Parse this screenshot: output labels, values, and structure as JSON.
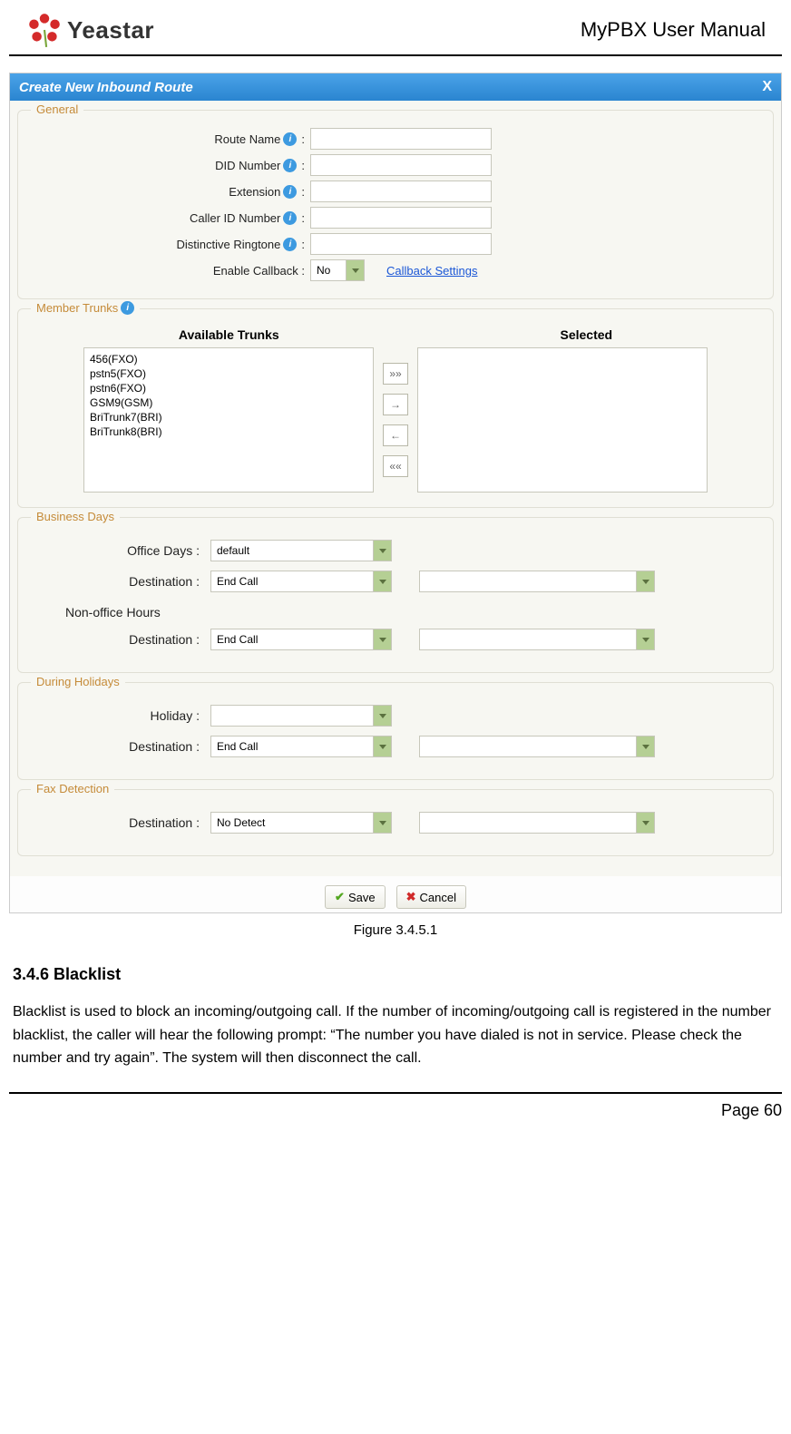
{
  "header": {
    "logo_text": "Yeastar",
    "doc_title": "MyPBX User Manual",
    "logo_color": "#d42a2a"
  },
  "dialog": {
    "title": "Create New Inbound Route",
    "close": "X"
  },
  "general": {
    "legend": "General",
    "route_name_label": "Route Name",
    "did_number_label": "DID Number",
    "extension_label": "Extension",
    "caller_id_label": "Caller ID Number",
    "ringtone_label": "Distinctive Ringtone",
    "enable_callback_label": "Enable Callback :",
    "enable_callback_value": "No",
    "callback_settings_link": "Callback Settings"
  },
  "trunks": {
    "legend": "Member Trunks",
    "available_header": "Available Trunks",
    "selected_header": "Selected",
    "available": [
      "456(FXO)",
      "pstn5(FXO)",
      "pstn6(FXO)",
      "GSM9(GSM)",
      "BriTrunk7(BRI)",
      "BriTrunk8(BRI)"
    ],
    "move_all_right": "»»",
    "move_right": "→",
    "move_left": "←",
    "move_all_left": "««"
  },
  "business_days": {
    "legend": "Business Days",
    "office_days_label": "Office Days :",
    "office_days_value": "default",
    "destination_label": "Destination :",
    "destination_value": "End Call",
    "nonoffice_header": "Non-office Hours",
    "nonoffice_destination_value": "End Call"
  },
  "holidays": {
    "legend": "During Holidays",
    "holiday_label": "Holiday :",
    "holiday_value": "",
    "destination_label": "Destination :",
    "destination_value": "End Call"
  },
  "fax": {
    "legend": "Fax Detection",
    "destination_label": "Destination :",
    "destination_value": "No Detect"
  },
  "buttons": {
    "save": "Save",
    "cancel": "Cancel"
  },
  "caption": "Figure 3.4.5.1",
  "section": {
    "heading": "3.4.6 Blacklist",
    "paragraph": "Blacklist is used to block an incoming/outgoing call. If the number of incoming/outgoing call is registered in the number blacklist, the caller will hear the following prompt: “The number you have dialed is not in service. Please check the number and try again”. The system will then disconnect the call."
  },
  "footer": {
    "page": "Page 60"
  },
  "colors": {
    "titlebar_grad_top": "#4aa3e8",
    "titlebar_grad_bottom": "#2a85d0",
    "legend_color": "#c58b39",
    "select_btn_bg": "#b5cf94",
    "link_color": "#1a56d6",
    "info_bg": "#3d9ae0",
    "border_color": "#c7c7bb"
  }
}
